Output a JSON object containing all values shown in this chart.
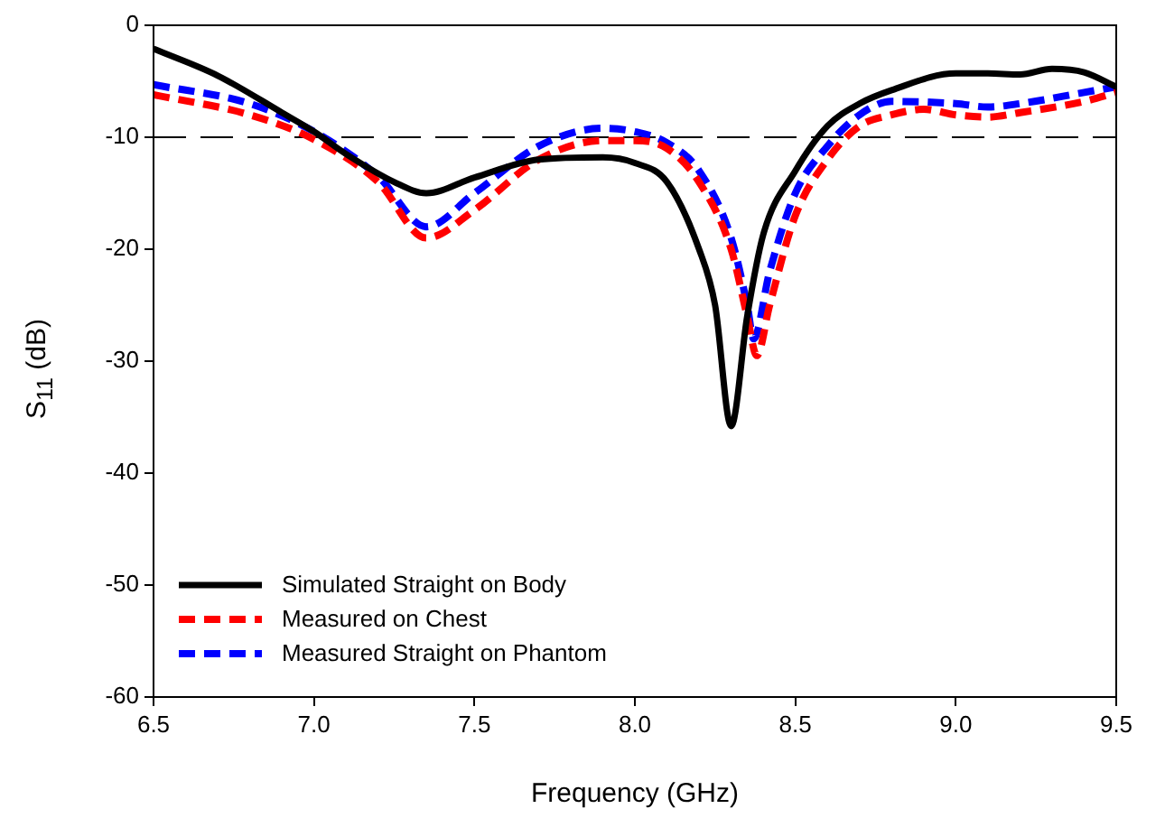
{
  "chart_data": {
    "type": "line",
    "xlabel": "Frequency (GHz)",
    "ylabel": "S$_{11}$ (dB)",
    "xlim": [
      6.5,
      9.5
    ],
    "xticks": [
      6.5,
      {
        "value": 7,
        "label": "7.0"
      },
      7.5,
      {
        "value": 8,
        "label": "8.0"
      },
      8.5,
      {
        "value": 9,
        "label": "9.0"
      },
      9.5
    ],
    "ylim": [
      -60,
      0
    ],
    "yticks": [
      -60,
      -50,
      -40,
      -30,
      -20,
      -10,
      0
    ],
    "grid": false,
    "legend": "bottom left",
    "marker": "none",
    "ref_lines": [
      {
        "axis": "y",
        "value": -10,
        "color": "#000000",
        "line_style": "dashed"
      }
    ],
    "series": [
      {
        "name": "Simulated Straight on Body",
        "color": "#000000",
        "line_style": "solid",
        "x": [
          6.5,
          6.7,
          6.9,
          7.0,
          7.1,
          7.25,
          7.35,
          7.5,
          7.7,
          7.9,
          8.0,
          8.1,
          8.2,
          8.25,
          8.3,
          8.35,
          8.4,
          8.5,
          8.6,
          8.7,
          8.8,
          9.0,
          9.1,
          9.2,
          9.3,
          9.4,
          9.5
        ],
        "values": [
          -2.1,
          -4.5,
          -7.8,
          -9.5,
          -11.5,
          -14,
          -15,
          -13.6,
          -12,
          -11.8,
          -12.3,
          -14,
          -20,
          -25,
          -35.8,
          -26,
          -18.7,
          -13,
          -9,
          -7,
          -5.8,
          -4.3,
          -4.3,
          -4.4,
          -3.9,
          -4.2,
          -5.5
        ]
      },
      {
        "name": "Measured on Chest",
        "color": "#ff0000",
        "line_style": "dashed",
        "x": [
          6.5,
          6.8,
          7.0,
          7.2,
          7.35,
          7.5,
          7.7,
          7.9,
          8.0,
          8.1,
          8.2,
          8.3,
          8.35,
          8.38,
          8.42,
          8.5,
          8.6,
          8.7,
          8.8,
          8.9,
          9.0,
          9.1,
          9.2,
          9.4,
          9.5
        ],
        "values": [
          -6.2,
          -8,
          -10.2,
          -14,
          -19,
          -16.5,
          -12,
          -10.3,
          -10.3,
          -11,
          -14,
          -20,
          -26,
          -29.5,
          -25,
          -17,
          -12,
          -9,
          -8,
          -7.5,
          -8,
          -8.2,
          -7.8,
          -6.8,
          -6
        ]
      },
      {
        "name": "Measured Straight on Phantom",
        "color": "#0000ff",
        "line_style": "dashed",
        "x": [
          6.5,
          6.8,
          7.0,
          7.2,
          7.35,
          7.5,
          7.7,
          7.9,
          8.0,
          8.1,
          8.2,
          8.3,
          8.35,
          8.37,
          8.42,
          8.5,
          8.6,
          8.7,
          8.8,
          9.0,
          9.1,
          9.2,
          9.4,
          9.5
        ],
        "values": [
          -5.3,
          -7,
          -9.5,
          -13.5,
          -18,
          -15,
          -10.8,
          -9.2,
          -9.5,
          -10.5,
          -13,
          -19,
          -25,
          -28,
          -22,
          -15,
          -10.8,
          -8,
          -6.8,
          -7,
          -7.3,
          -7,
          -6,
          -5.5
        ]
      }
    ]
  }
}
